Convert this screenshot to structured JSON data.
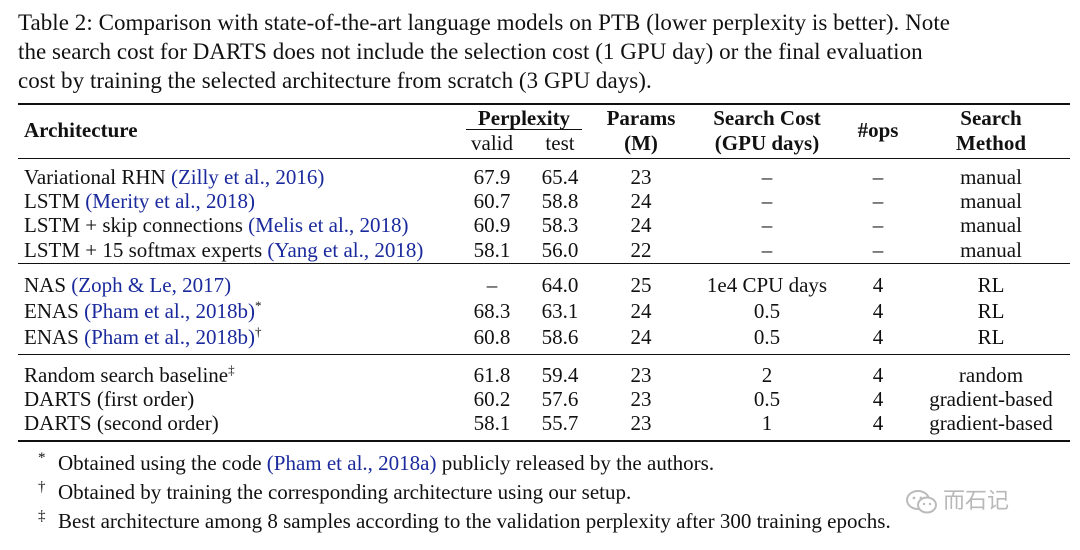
{
  "caption": {
    "line1": "Table 2: Comparison with state-of-the-art language models on PTB (lower perplexity is better). Note",
    "line2": "the search cost for DARTS does not include the selection cost (1 GPU day) or the final evaluation",
    "line3": "cost by training the selected architecture from scratch (3 GPU days)."
  },
  "headers": {
    "architecture": "Architecture",
    "perplexity": "Perplexity",
    "valid": "valid",
    "test": "test",
    "params_line1": "Params",
    "params_line2": "(M)",
    "cost_line1": "Search Cost",
    "cost_line2": "(GPU days)",
    "ops": "#ops",
    "method_line1": "Search",
    "method_line2": "Method"
  },
  "rows": [
    {
      "name": "Variational RHN ",
      "ref": "(Zilly et al., 2016)",
      "mark": "",
      "valid": "67.9",
      "test": "65.4",
      "params": "23",
      "cost": "–",
      "ops": "–",
      "method": "manual"
    },
    {
      "name": "LSTM ",
      "ref": "(Merity et al., 2018)",
      "mark": "",
      "valid": "60.7",
      "test": "58.8",
      "params": "24",
      "cost": "–",
      "ops": "–",
      "method": "manual"
    },
    {
      "name": "LSTM + skip connections ",
      "ref": "(Melis et al., 2018)",
      "mark": "",
      "valid": "60.9",
      "test": "58.3",
      "params": "24",
      "cost": "–",
      "ops": "–",
      "method": "manual"
    },
    {
      "name": "LSTM + 15 softmax experts ",
      "ref": "(Yang et al., 2018)",
      "mark": "",
      "valid": "58.1",
      "test": "56.0",
      "params": "22",
      "cost": "–",
      "ops": "–",
      "method": "manual"
    },
    {
      "name": "NAS ",
      "ref": "(Zoph & Le, 2017)",
      "mark": "",
      "valid": "–",
      "test": "64.0",
      "params": "25",
      "cost": "1e4 CPU days",
      "ops": "4",
      "method": "RL"
    },
    {
      "name": "ENAS ",
      "ref": "(Pham et al., 2018b)",
      "mark": "*",
      "valid": "68.3",
      "test": "63.1",
      "params": "24",
      "cost": "0.5",
      "ops": "4",
      "method": "RL"
    },
    {
      "name": "ENAS ",
      "ref": "(Pham et al., 2018b)",
      "mark": "†",
      "valid": "60.8",
      "test": "58.6",
      "params": "24",
      "cost": "0.5",
      "ops": "4",
      "method": "RL"
    },
    {
      "name": "Random search baseline",
      "ref": "",
      "mark": "‡",
      "valid": "61.8",
      "test": "59.4",
      "params": "23",
      "cost": "2",
      "ops": "4",
      "method": "random"
    },
    {
      "name": "DARTS (first order)",
      "ref": "",
      "mark": "",
      "valid": "60.2",
      "test": "57.6",
      "params": "23",
      "cost": "0.5",
      "ops": "4",
      "method": "gradient-based"
    },
    {
      "name": "DARTS (second order)",
      "ref": "",
      "mark": "",
      "valid": "58.1",
      "test": "55.7",
      "params": "23",
      "cost": "1",
      "ops": "4",
      "method": "gradient-based"
    }
  ],
  "footnotes": [
    {
      "symbol": "*",
      "pre": "Obtained using the code ",
      "ref": "(Pham et al., 2018a)",
      "post": " publicly released by the authors."
    },
    {
      "symbol": "†",
      "pre": "Obtained by training the corresponding architecture using our setup.",
      "ref": "",
      "post": ""
    },
    {
      "symbol": "‡",
      "pre": "Best architecture among 8 samples according to the validation perplexity after 300 training epochs.",
      "ref": "",
      "post": ""
    }
  ],
  "watermark": {
    "text": "而石记",
    "icon": "wechat-icon",
    "color": "#b8b8b8"
  },
  "colors": {
    "reference_link": "#1a2a9c",
    "text": "#111111"
  }
}
